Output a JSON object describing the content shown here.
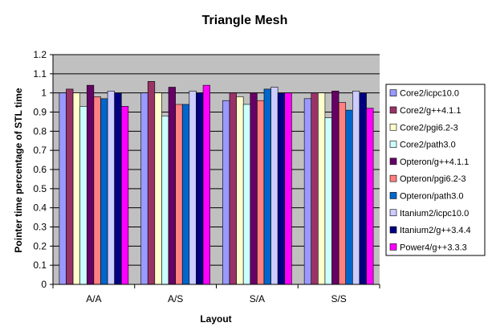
{
  "chart_data": {
    "type": "bar",
    "title": "Triangle Mesh",
    "xlabel": "Layout",
    "ylabel": "Pointer time percentage of STL time",
    "ylim": [
      0,
      1.2
    ],
    "yticks": [
      0,
      0.1,
      0.2,
      0.3,
      0.4,
      0.5,
      0.6,
      0.7,
      0.8,
      0.9,
      1,
      1.1,
      1.2
    ],
    "ytick_labels": [
      "0",
      "0.1",
      "0.2",
      "0.3",
      "0.4",
      "0.5",
      "0.6",
      "0.7",
      "0.8",
      "0.9",
      "1",
      "1.1",
      "1.2"
    ],
    "grid": "horizontal",
    "legend_position": "right",
    "plot_background": "#c0c0c0",
    "categories": [
      "A/A",
      "A/S",
      "S/A",
      "S/S"
    ],
    "series": [
      {
        "name": "Core2/icpc10.0",
        "color": "#9999ff",
        "values": [
          1.0,
          1.0,
          0.96,
          0.97
        ]
      },
      {
        "name": "Core2/g++4.1.1",
        "color": "#993366",
        "values": [
          1.02,
          1.06,
          1.0,
          1.0
        ]
      },
      {
        "name": "Core2/pgi6.2-3",
        "color": "#ffffcc",
        "values": [
          1.0,
          1.0,
          0.98,
          1.0
        ]
      },
      {
        "name": "Core2/path3.0",
        "color": "#ccffff",
        "values": [
          0.93,
          0.88,
          0.94,
          0.87
        ]
      },
      {
        "name": "Opteron/g++4.1.1",
        "color": "#660066",
        "values": [
          1.04,
          1.03,
          1.0,
          1.01
        ]
      },
      {
        "name": "Opteron/pgi6.2-3",
        "color": "#ff8080",
        "values": [
          0.98,
          0.94,
          0.96,
          0.95
        ]
      },
      {
        "name": "Opteron/path3.0",
        "color": "#0066cc",
        "values": [
          0.97,
          0.94,
          1.02,
          0.91
        ]
      },
      {
        "name": "Itanium2/icpc10.0",
        "color": "#ccccff",
        "values": [
          1.01,
          1.01,
          1.03,
          1.01
        ]
      },
      {
        "name": "Itanium2/g++3.4.4",
        "color": "#000080",
        "values": [
          1.0,
          1.0,
          1.0,
          1.0
        ]
      },
      {
        "name": "Power4/g++3.3.3",
        "color": "#ff00ff",
        "values": [
          0.93,
          1.04,
          1.0,
          0.92
        ]
      }
    ]
  }
}
